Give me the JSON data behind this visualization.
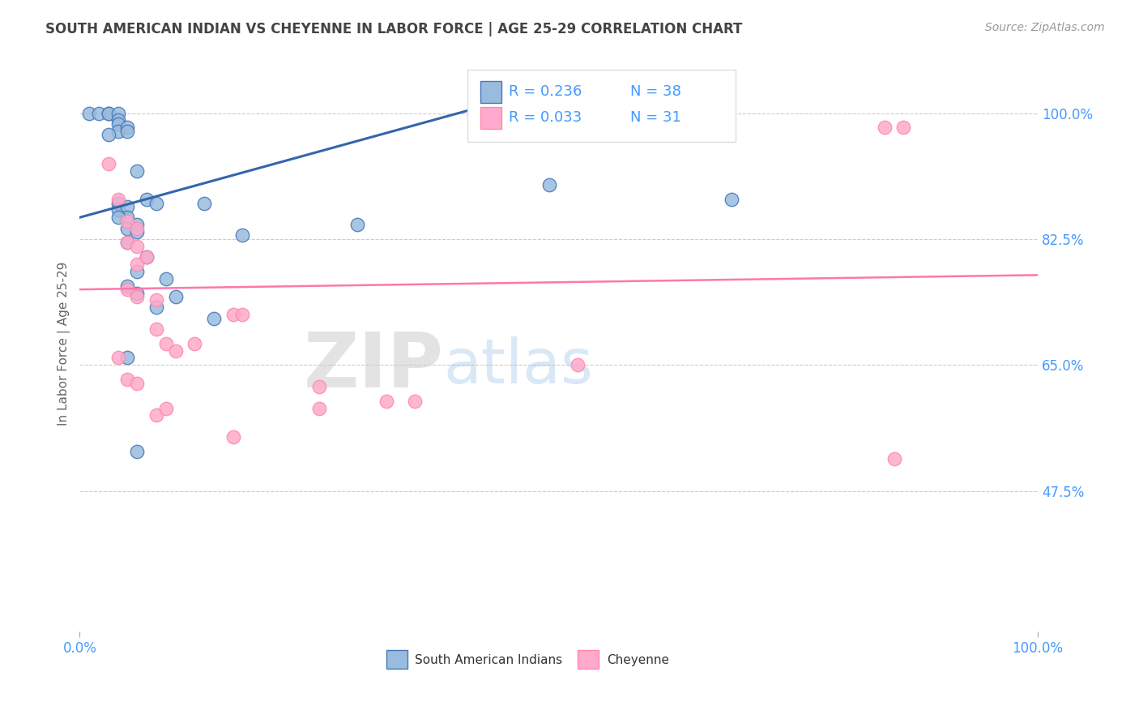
{
  "title": "SOUTH AMERICAN INDIAN VS CHEYENNE IN LABOR FORCE | AGE 25-29 CORRELATION CHART",
  "source_text": "Source: ZipAtlas.com",
  "ylabel": "In Labor Force | Age 25-29",
  "xlim": [
    0.0,
    1.0
  ],
  "ylim": [
    0.28,
    1.08
  ],
  "x_tick_labels": [
    "0.0%",
    "100.0%"
  ],
  "x_tick_positions": [
    0.0,
    1.0
  ],
  "y_tick_labels": [
    "47.5%",
    "65.0%",
    "82.5%",
    "100.0%"
  ],
  "y_tick_positions": [
    0.475,
    0.65,
    0.825,
    1.0
  ],
  "blue_scatter_x": [
    0.01,
    0.02,
    0.03,
    0.03,
    0.04,
    0.04,
    0.04,
    0.04,
    0.04,
    0.04,
    0.05,
    0.05,
    0.05,
    0.05,
    0.05,
    0.05,
    0.06,
    0.06,
    0.06,
    0.06,
    0.07,
    0.07,
    0.08,
    0.09,
    0.1,
    0.13,
    0.14,
    0.17,
    0.05,
    0.06,
    0.08,
    0.29,
    0.49,
    0.68,
    0.03,
    0.04,
    0.05,
    0.06
  ],
  "blue_scatter_y": [
    1.0,
    1.0,
    1.0,
    1.0,
    1.0,
    0.99,
    0.985,
    0.975,
    0.875,
    0.865,
    0.98,
    0.975,
    0.87,
    0.855,
    0.84,
    0.82,
    0.92,
    0.845,
    0.835,
    0.78,
    0.88,
    0.8,
    0.875,
    0.77,
    0.745,
    0.875,
    0.715,
    0.83,
    0.76,
    0.75,
    0.73,
    0.845,
    0.9,
    0.88,
    0.97,
    0.855,
    0.66,
    0.53
  ],
  "pink_scatter_x": [
    0.03,
    0.04,
    0.05,
    0.05,
    0.05,
    0.06,
    0.06,
    0.06,
    0.06,
    0.07,
    0.08,
    0.08,
    0.09,
    0.1,
    0.12,
    0.16,
    0.17,
    0.32,
    0.35,
    0.04,
    0.05,
    0.06,
    0.08,
    0.09,
    0.52,
    0.84,
    0.86,
    0.85,
    0.25,
    0.25,
    0.16
  ],
  "pink_scatter_y": [
    0.93,
    0.88,
    0.85,
    0.82,
    0.755,
    0.84,
    0.815,
    0.79,
    0.745,
    0.8,
    0.74,
    0.7,
    0.68,
    0.67,
    0.68,
    0.72,
    0.72,
    0.6,
    0.6,
    0.66,
    0.63,
    0.625,
    0.58,
    0.59,
    0.65,
    0.98,
    0.98,
    0.52,
    0.62,
    0.59,
    0.55
  ],
  "blue_line_x": [
    0.0,
    0.45
  ],
  "blue_line_y": [
    0.855,
    1.02
  ],
  "pink_line_x": [
    0.0,
    1.0
  ],
  "pink_line_y": [
    0.755,
    0.775
  ],
  "blue_color": "#99BBDD",
  "pink_color": "#FFAACC",
  "blue_edge_color": "#4477BB",
  "pink_edge_color": "#FF88AA",
  "blue_line_color": "#3366AA",
  "pink_line_color": "#FF77AA",
  "legend_R_blue": "R = 0.236",
  "legend_N_blue": "N = 38",
  "legend_R_pink": "R = 0.033",
  "legend_N_pink": "N = 31",
  "watermark_ZIP": "ZIP",
  "watermark_atlas": "atlas",
  "watermark_color_ZIP": "#CCCCCC",
  "watermark_color_atlas": "#AACCEE",
  "grid_color": "#CCCCCC",
  "background_color": "#FFFFFF",
  "title_color": "#444444",
  "axis_label_color": "#666666",
  "tick_color_blue": "#4499FF",
  "legend_box_color": "#DDDDDD",
  "bottom_legend_blue": "South American Indians",
  "bottom_legend_pink": "Cheyenne"
}
